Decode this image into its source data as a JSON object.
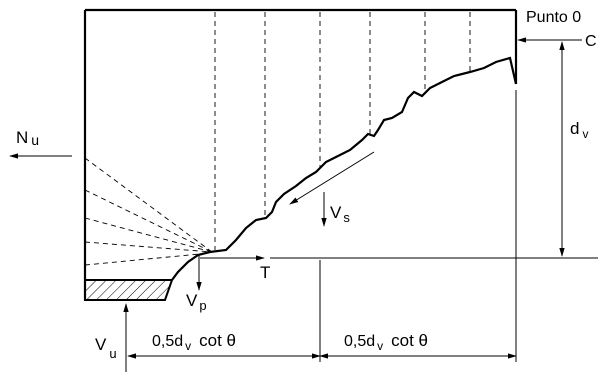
{
  "labels": {
    "punto_0": "Punto 0",
    "c": "C",
    "dv": "d",
    "dv_sub": "v",
    "nu": "N",
    "nu_sub": "u",
    "vs": "V",
    "vs_sub": "s",
    "t": "T",
    "vp": "V",
    "vp_sub": "p",
    "vu": "V",
    "vu_sub": "u",
    "dim_left_a": "0,5d",
    "dim_left_sub": "v",
    "dim_left_b": "cot θ",
    "dim_right_a": "0,5d",
    "dim_right_sub": "v",
    "dim_right_b": "cot θ"
  },
  "colors": {
    "ink": "#000000",
    "background": "#ffffff"
  }
}
